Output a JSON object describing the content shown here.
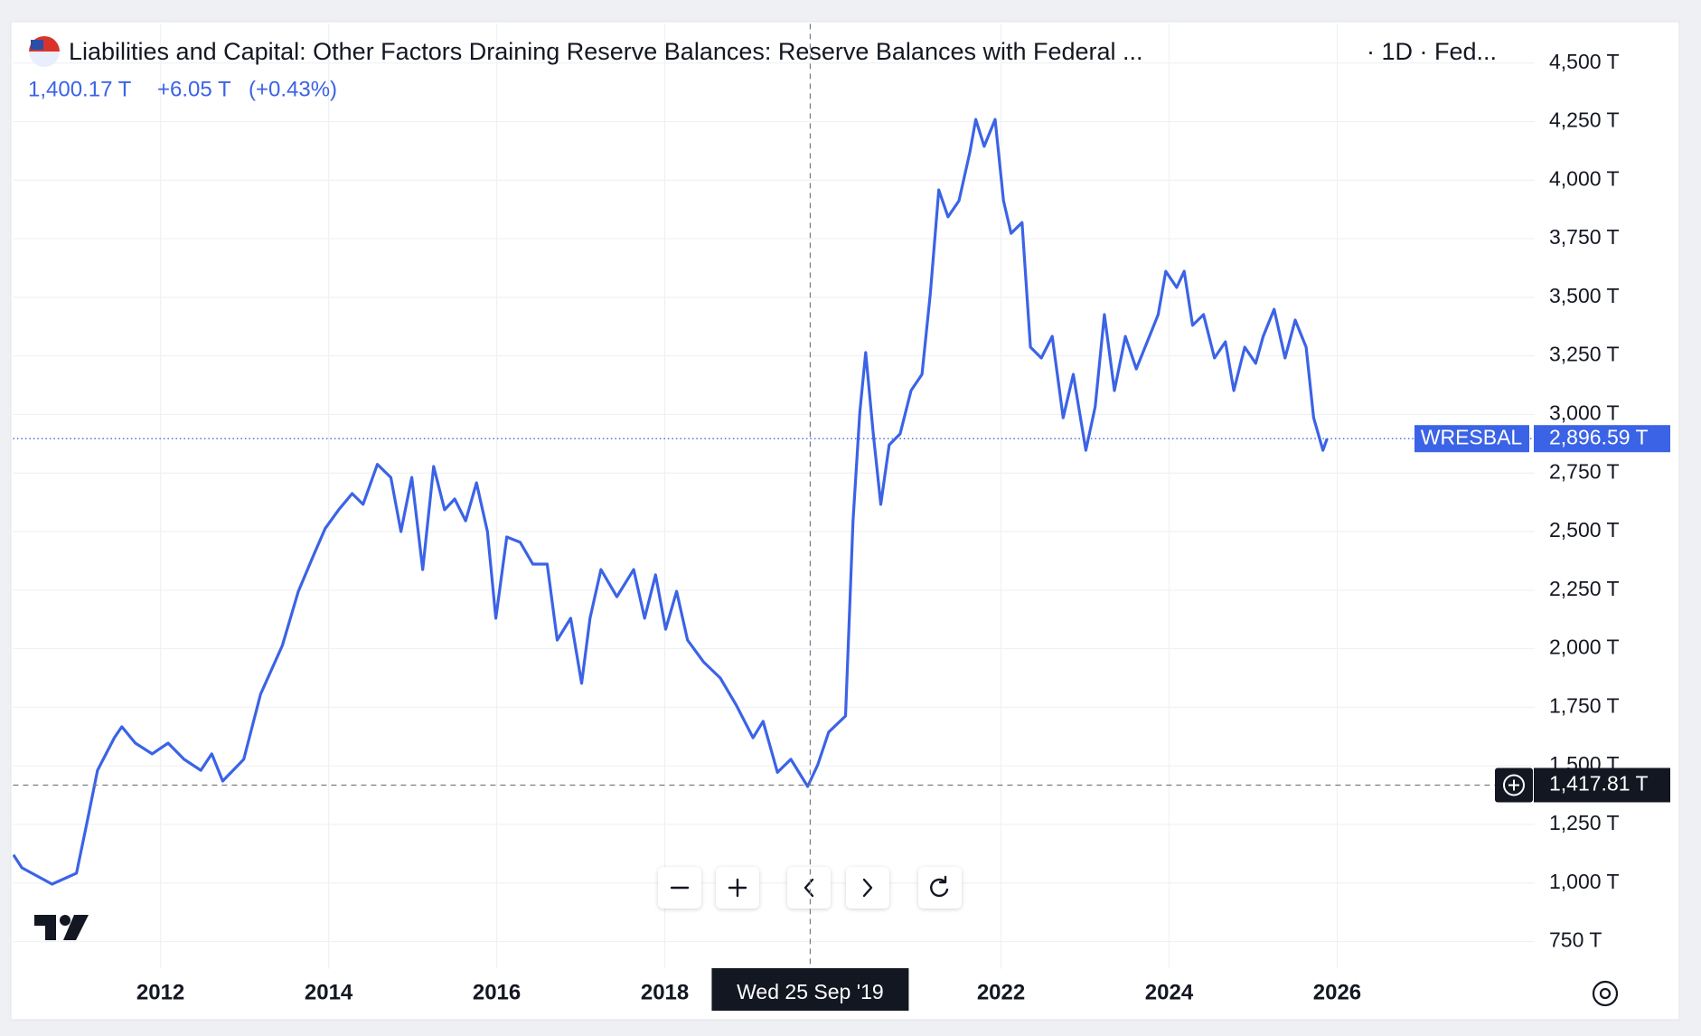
{
  "chart_data": {
    "type": "line",
    "title": "Liabilities and Capital: Other Factors Draining Reserve Balances: Reserve Balances with Federal ...",
    "subtitle": "· 1D · Fed...",
    "legend_values": {
      "value": "1,400.17 T",
      "change": "+6.05 T",
      "change_pct": "(+0.43%)"
    },
    "x": [
      2010.25,
      2010.35,
      2010.71,
      2011.0,
      2011.12,
      2011.25,
      2011.45,
      2011.54,
      2011.7,
      2011.9,
      2012.09,
      2012.28,
      2012.48,
      2012.61,
      2012.74,
      2012.99,
      2013.19,
      2013.45,
      2013.64,
      2013.83,
      2013.96,
      2014.12,
      2014.28,
      2014.41,
      2014.58,
      2014.74,
      2014.86,
      2014.99,
      2015.12,
      2015.25,
      2015.38,
      2015.5,
      2015.63,
      2015.76,
      2015.89,
      2015.99,
      2016.12,
      2016.28,
      2016.43,
      2016.6,
      2016.72,
      2016.88,
      2017.01,
      2017.11,
      2017.24,
      2017.43,
      2017.63,
      2017.76,
      2017.89,
      2018.01,
      2018.14,
      2018.27,
      2018.46,
      2018.66,
      2018.85,
      2019.05,
      2019.17,
      2019.34,
      2019.5,
      2019.7,
      2019.82,
      2019.95,
      2020.15,
      2020.24,
      2020.32,
      2020.39,
      2020.48,
      2020.57,
      2020.67,
      2020.8,
      2020.93,
      2021.06,
      2021.16,
      2021.26,
      2021.37,
      2021.5,
      2021.63,
      2021.7,
      2021.8,
      2021.93,
      2022.03,
      2022.12,
      2022.25,
      2022.35,
      2022.48,
      2022.61,
      2022.74,
      2022.86,
      2023.01,
      2023.12,
      2023.23,
      2023.35,
      2023.48,
      2023.61,
      2023.74,
      2023.87,
      2023.96,
      2024.09,
      2024.18,
      2024.28,
      2024.41,
      2024.54,
      2024.67,
      2024.77,
      2024.9,
      2025.03,
      2025.12,
      2025.25,
      2025.38,
      2025.5,
      2025.63,
      2025.72,
      2025.83,
      2025.88
    ],
    "series": [
      {
        "name": "WRESBAL",
        "color": "#3b63e6",
        "values": [
          1120,
          1065,
          995,
          1042,
          1250,
          1481,
          1620,
          1667,
          1597,
          1551,
          1597,
          1528,
          1481,
          1551,
          1435,
          1528,
          1806,
          2014,
          2245,
          2407,
          2514,
          2593,
          2662,
          2616,
          2787,
          2731,
          2500,
          2731,
          2338,
          2778,
          2593,
          2639,
          2546,
          2708,
          2500,
          2130,
          2477,
          2454,
          2361,
          2361,
          2037,
          2130,
          1852,
          2130,
          2338,
          2222,
          2338,
          2130,
          2315,
          2083,
          2245,
          2037,
          1944,
          1875,
          1759,
          1620,
          1690,
          1472,
          1528,
          1412,
          1505,
          1644,
          1713,
          2546,
          3009,
          3264,
          2917,
          2616,
          2870,
          2917,
          3102,
          3171,
          3519,
          3958,
          3843,
          3912,
          4120,
          4259,
          4144,
          4259,
          3912,
          3773,
          3819,
          3287,
          3241,
          3333,
          2986,
          3171,
          2847,
          3032,
          3426,
          3102,
          3333,
          3194,
          3310,
          3426,
          3611,
          3542,
          3611,
          3380,
          3426,
          3241,
          3310,
          3102,
          3287,
          3218,
          3333,
          3449,
          3241,
          3403,
          3287,
          2986,
          2847,
          2896.59
        ]
      }
    ],
    "last_value_label": "2,896.59 T",
    "crosshair": {
      "x": 2019.73,
      "x_label": "Wed 25 Sep '19",
      "y": 1417.81,
      "y_label": "1,417.81 T"
    },
    "xlim": [
      2010.245,
      2028.35
    ],
    "xticks": [
      2012,
      2014,
      2016,
      2018,
      2022,
      2024,
      2026
    ],
    "ylim": [
      634,
      4667
    ],
    "yticks": [
      {
        "value": 750,
        "label": "750 T"
      },
      {
        "value": 1000,
        "label": "1,000 T"
      },
      {
        "value": 1250,
        "label": "1,250 T"
      },
      {
        "value": 1500,
        "label": "1,500 T"
      },
      {
        "value": 1750,
        "label": "1,750 T"
      },
      {
        "value": 2000,
        "label": "2,000 T"
      },
      {
        "value": 2250,
        "label": "2,250 T"
      },
      {
        "value": 2500,
        "label": "2,500 T"
      },
      {
        "value": 2750,
        "label": "2,750 T"
      },
      {
        "value": 3000,
        "label": "3,000 T"
      },
      {
        "value": 3250,
        "label": "3,250 T"
      },
      {
        "value": 3500,
        "label": "3,500 T"
      },
      {
        "value": 3750,
        "label": "3,750 T"
      },
      {
        "value": 4000,
        "label": "4,000 T"
      },
      {
        "value": 4250,
        "label": "4,250 T"
      },
      {
        "value": 4500,
        "label": "4,500 T"
      }
    ],
    "grid": true
  }
}
